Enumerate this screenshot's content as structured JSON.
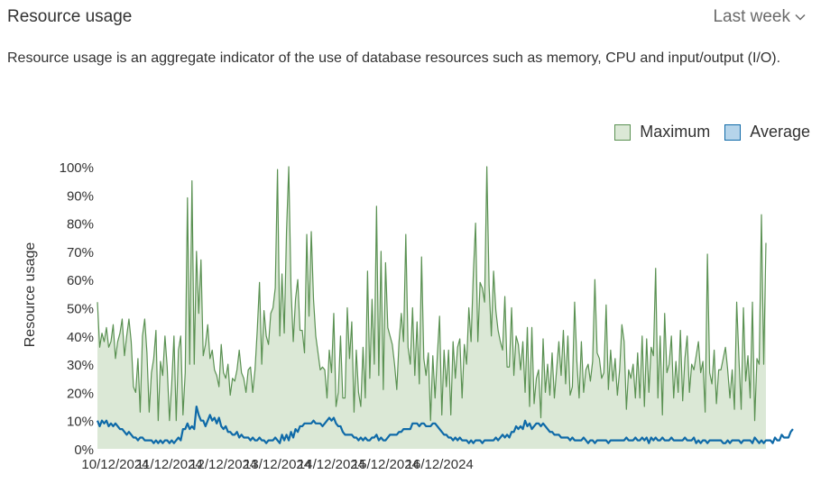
{
  "header": {
    "title": "Resource usage",
    "range_label": "Last week"
  },
  "description": "Resource usage is an aggregate indicator of the use of database resources such as memory, CPU and input/output (I/O).",
  "legend": {
    "max_label": "Maximum",
    "avg_label": "Average"
  },
  "colors": {
    "max_line": "#5a9152",
    "max_fill": "#dbe8d6",
    "avg_line": "#0f6aa8",
    "avg_swatch": "#b5d4ea"
  },
  "chart_data": {
    "type": "area",
    "xlabel": "",
    "ylabel": "Resource usage",
    "ylim": [
      0,
      100
    ],
    "y_ticks": [
      "0%",
      "10%",
      "20%",
      "30%",
      "40%",
      "50%",
      "60%",
      "70%",
      "80%",
      "90%",
      "100%"
    ],
    "x_tick_labels": [
      "10/12/2024",
      "11/12/2024",
      "12/12/2024",
      "13/12/2024",
      "14/12/2024",
      "15/12/2024",
      "16/12/2024"
    ],
    "x_start": "09/12/2024 16:00",
    "interval_minutes": 60,
    "grid": false,
    "legend_position": "top-right",
    "series": [
      {
        "name": "Maximum",
        "values": [
          52,
          36,
          41,
          38,
          43,
          36,
          38,
          44,
          32,
          38,
          41,
          46,
          33,
          40,
          46,
          38,
          22,
          20,
          32,
          13,
          40,
          46,
          34,
          13,
          27,
          32,
          42,
          10,
          31,
          26,
          40,
          29,
          10,
          23,
          40,
          10,
          35,
          40,
          12,
          27,
          89,
          30,
          95,
          30,
          70,
          48,
          67,
          33,
          37,
          44,
          32,
          35,
          28,
          26,
          22,
          37,
          27,
          25,
          30,
          19,
          25,
          24,
          28,
          35,
          27,
          25,
          20,
          28,
          29,
          20,
          28,
          42,
          59,
          30,
          49,
          40,
          37,
          48,
          50,
          57,
          99,
          40,
          62,
          41,
          77,
          100,
          57,
          38,
          53,
          60,
          42,
          42,
          34,
          76,
          47,
          77,
          53,
          40,
          34,
          28,
          29,
          28,
          18,
          35,
          27,
          48,
          15,
          20,
          40,
          18,
          18,
          50,
          32,
          45,
          13,
          35,
          20,
          15,
          36,
          18,
          63,
          25,
          53,
          30,
          86,
          26,
          70,
          21,
          66,
          43,
          40,
          37,
          30,
          21,
          38,
          48,
          38,
          76,
          36,
          30,
          50,
          26,
          45,
          23,
          68,
          32,
          26,
          34,
          10,
          33,
          18,
          33,
          47,
          12,
          35,
          22,
          35,
          12,
          38,
          25,
          36,
          39,
          18,
          37,
          30,
          50,
          38,
          62,
          80,
          38,
          59,
          57,
          52,
          100,
          58,
          40,
          63,
          49,
          42,
          38,
          35,
          54,
          29,
          29,
          50,
          26,
          40,
          37,
          28,
          38,
          20,
          43,
          15,
          43,
          16,
          25,
          28,
          11,
          39,
          20,
          30,
          19,
          34,
          18,
          28,
          38,
          26,
          42,
          23,
          40,
          19,
          22,
          52,
          31,
          18,
          38,
          20,
          28,
          30,
          24,
          31,
          60,
          34,
          32,
          25,
          27,
          51,
          21,
          35,
          24,
          32,
          19,
          28,
          44,
          38,
          14,
          28,
          25,
          30,
          18,
          34,
          18,
          40,
          15,
          39,
          20,
          36,
          33,
          64,
          18,
          40,
          12,
          48,
          27,
          30,
          40,
          18,
          31,
          20,
          42,
          17,
          32,
          40,
          20,
          30,
          28,
          33,
          38,
          27,
          31,
          13,
          69,
          27,
          23,
          35,
          16,
          28,
          28,
          32,
          36,
          28,
          18,
          28,
          14,
          52,
          32,
          14,
          50,
          24,
          33,
          18,
          52,
          10,
          32,
          30,
          83,
          30,
          73
        ]
      },
      {
        "name": "Average",
        "values": [
          10,
          8,
          10,
          9,
          10,
          8,
          9,
          8,
          9,
          8,
          7,
          7,
          6,
          5,
          6,
          5,
          4,
          4,
          3,
          4,
          4,
          3,
          3,
          3,
          3,
          2,
          3,
          2,
          3,
          2,
          3,
          3,
          2,
          3,
          2,
          3,
          4,
          3,
          7,
          7,
          9,
          7,
          8,
          7,
          15,
          12,
          10,
          10,
          8,
          10,
          12,
          10,
          11,
          9,
          11,
          8,
          7,
          8,
          6,
          6,
          5,
          5,
          6,
          4,
          5,
          4,
          4,
          4,
          3,
          4,
          3,
          3,
          4,
          3,
          3,
          2,
          3,
          3,
          3,
          4,
          3,
          2,
          5,
          3,
          5,
          3,
          6,
          4,
          7,
          6,
          8,
          8,
          9,
          9,
          9,
          9,
          10,
          9,
          9,
          9,
          8,
          9,
          10,
          11,
          10,
          11,
          9,
          8,
          8,
          6,
          5,
          5,
          5,
          5,
          4,
          4,
          3,
          4,
          3,
          4,
          3,
          3,
          4,
          4,
          5,
          3,
          4,
          3,
          3,
          4,
          5,
          5,
          5,
          5,
          6,
          6,
          7,
          7,
          7,
          7,
          9,
          9,
          9,
          8,
          9,
          9,
          8,
          8,
          8,
          9,
          9,
          8,
          7,
          6,
          5,
          5,
          4,
          4,
          3,
          4,
          3,
          4,
          3,
          3,
          3,
          2,
          3,
          2,
          3,
          3,
          3,
          2,
          3,
          3,
          3,
          3,
          3,
          4,
          3,
          4,
          5,
          4,
          5,
          4,
          6,
          6,
          8,
          7,
          8,
          7,
          10,
          8,
          9,
          7,
          8,
          9,
          9,
          8,
          9,
          8,
          7,
          6,
          6,
          5,
          5,
          5,
          4,
          4,
          4,
          4,
          3,
          4,
          3,
          3,
          3,
          3,
          4,
          3,
          2,
          3,
          3,
          2,
          3,
          3,
          3,
          3,
          3,
          2,
          3,
          3,
          3,
          3,
          3,
          3,
          3,
          4,
          3,
          3,
          3,
          4,
          3,
          3,
          4,
          3,
          4,
          2,
          4,
          3,
          4,
          3,
          3,
          4,
          3,
          3,
          3,
          4,
          3,
          3,
          3,
          3,
          3,
          4,
          3,
          3,
          3,
          4,
          2,
          3,
          2,
          3,
          3,
          2,
          3,
          3,
          3,
          3,
          3,
          3,
          2,
          2,
          3,
          2,
          3,
          3,
          3,
          3,
          2,
          3,
          3,
          3,
          3,
          2,
          4,
          3,
          2,
          3,
          2,
          3,
          3,
          3,
          2,
          4,
          3,
          3,
          5,
          4,
          4,
          4,
          6,
          7
        ]
      }
    ]
  }
}
